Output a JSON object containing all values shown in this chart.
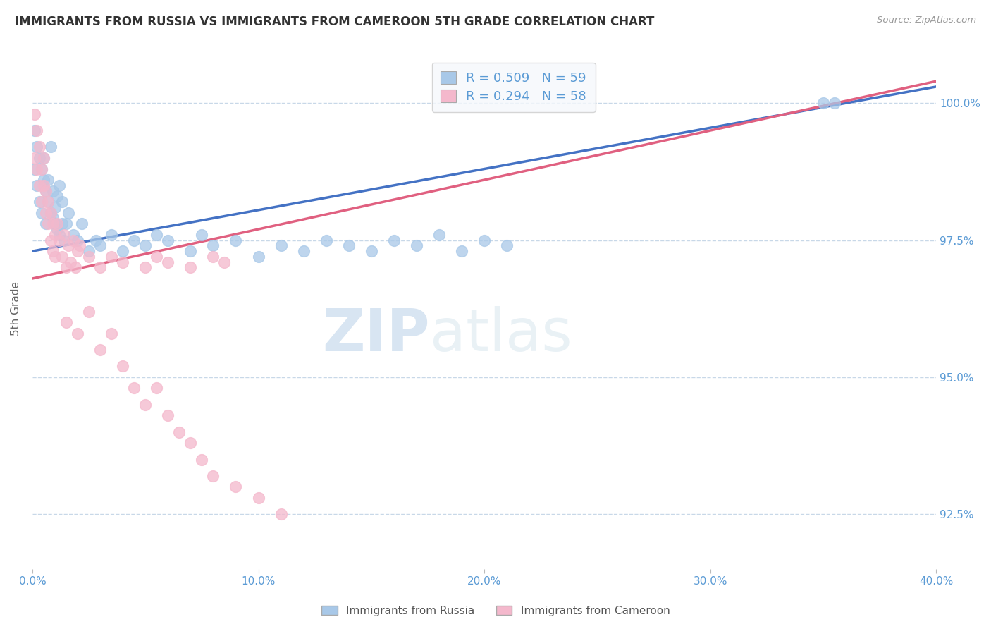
{
  "title": "IMMIGRANTS FROM RUSSIA VS IMMIGRANTS FROM CAMEROON 5TH GRADE CORRELATION CHART",
  "source": "Source: ZipAtlas.com",
  "ylabel_label": "5th Grade",
  "x_min": 0.0,
  "x_max": 40.0,
  "y_min": 91.5,
  "y_max": 101.0,
  "y_ticks": [
    92.5,
    95.0,
    97.5,
    100.0
  ],
  "x_ticks": [
    0.0,
    10.0,
    20.0,
    30.0,
    40.0
  ],
  "russia_color": "#a8c8e8",
  "cameroon_color": "#f4b8cc",
  "russia_R": 0.509,
  "russia_N": 59,
  "cameroon_R": 0.294,
  "cameroon_N": 58,
  "russia_line_color": "#4472c4",
  "cameroon_line_color": "#e06080",
  "russia_line_x0": 0.0,
  "russia_line_y0": 97.3,
  "russia_line_x1": 36.0,
  "russia_line_y1": 100.0,
  "cameroon_line_x0": 0.0,
  "cameroon_line_y0": 96.8,
  "cameroon_line_x1": 20.0,
  "cameroon_line_y1": 98.6,
  "russia_points_x": [
    0.1,
    0.1,
    0.2,
    0.2,
    0.3,
    0.3,
    0.4,
    0.4,
    0.5,
    0.5,
    0.6,
    0.6,
    0.7,
    0.7,
    0.8,
    0.8,
    0.9,
    0.9,
    1.0,
    1.0,
    1.1,
    1.1,
    1.2,
    1.2,
    1.3,
    1.3,
    1.4,
    1.5,
    1.6,
    1.8,
    2.0,
    2.2,
    2.5,
    2.8,
    3.0,
    3.5,
    4.0,
    4.5,
    5.0,
    5.5,
    6.0,
    7.0,
    7.5,
    8.0,
    9.0,
    10.0,
    11.0,
    12.0,
    13.0,
    14.0,
    15.0,
    16.0,
    17.0,
    18.0,
    19.0,
    20.0,
    21.0,
    35.0,
    35.5
  ],
  "russia_points_y": [
    99.5,
    98.8,
    99.2,
    98.5,
    99.0,
    98.2,
    98.8,
    98.0,
    98.6,
    99.0,
    98.4,
    97.8,
    98.2,
    98.6,
    98.0,
    99.2,
    97.9,
    98.4,
    98.1,
    97.8,
    98.3,
    97.7,
    98.5,
    97.6,
    97.8,
    98.2,
    97.5,
    97.8,
    98.0,
    97.6,
    97.5,
    97.8,
    97.3,
    97.5,
    97.4,
    97.6,
    97.3,
    97.5,
    97.4,
    97.6,
    97.5,
    97.3,
    97.6,
    97.4,
    97.5,
    97.2,
    97.4,
    97.3,
    97.5,
    97.4,
    97.3,
    97.5,
    97.4,
    97.6,
    97.3,
    97.5,
    97.4,
    100.0,
    100.0
  ],
  "cameroon_points_x": [
    0.1,
    0.1,
    0.2,
    0.2,
    0.3,
    0.3,
    0.4,
    0.4,
    0.5,
    0.5,
    0.6,
    0.6,
    0.7,
    0.7,
    0.8,
    0.8,
    0.9,
    0.9,
    1.0,
    1.0,
    1.1,
    1.2,
    1.3,
    1.4,
    1.5,
    1.6,
    1.7,
    1.8,
    1.9,
    2.0,
    2.1,
    2.5,
    3.0,
    3.5,
    4.0,
    5.0,
    5.5,
    6.0,
    7.0,
    8.0,
    8.5,
    1.5,
    2.0,
    2.5,
    3.0,
    3.5,
    4.0,
    4.5,
    5.0,
    5.5,
    6.0,
    6.5,
    7.0,
    7.5,
    8.0,
    9.0,
    10.0,
    11.0
  ],
  "cameroon_points_y": [
    99.8,
    99.0,
    99.5,
    98.8,
    99.2,
    98.5,
    98.8,
    98.2,
    98.5,
    99.0,
    98.0,
    98.4,
    97.8,
    98.2,
    97.5,
    98.0,
    97.3,
    97.8,
    97.6,
    97.2,
    97.8,
    97.5,
    97.2,
    97.6,
    97.0,
    97.4,
    97.1,
    97.5,
    97.0,
    97.3,
    97.4,
    97.2,
    97.0,
    97.2,
    97.1,
    97.0,
    97.2,
    97.1,
    97.0,
    97.2,
    97.1,
    96.0,
    95.8,
    96.2,
    95.5,
    95.8,
    95.2,
    94.8,
    94.5,
    94.8,
    94.3,
    94.0,
    93.8,
    93.5,
    93.2,
    93.0,
    92.8,
    92.5
  ],
  "background_color": "#ffffff",
  "grid_color": "#c8d8e8",
  "watermark_zip": "ZIP",
  "watermark_atlas": "atlas",
  "title_color": "#333333",
  "tick_label_color": "#5b9bd5"
}
